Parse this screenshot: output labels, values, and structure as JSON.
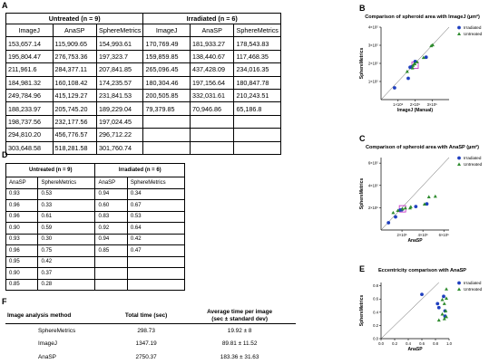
{
  "panels": {
    "A": "A",
    "B": "B",
    "C": "C",
    "D": "D",
    "E": "E",
    "F": "F"
  },
  "tableA": {
    "groups": [
      "Untreated (n = 9)",
      "Irradiated (n = 6)"
    ],
    "headers": [
      "ImageJ",
      "AnaSP",
      "SphereMetrics",
      "ImageJ",
      "AnaSP",
      "SphereMetrics"
    ],
    "rows": [
      [
        "153,657.14",
        "115,909.65",
        "154,993.61",
        "170,769.49",
        "181,933.27",
        "178,543.83"
      ],
      [
        "195,804.47",
        "276,753.36",
        "197,323.7",
        "159,859.85",
        "138,440.67",
        "117,468.35"
      ],
      [
        "211,961.6",
        "284,377.11",
        "207,841.85",
        "265,096.45",
        "437,428.09",
        "234,016.35"
      ],
      [
        "184,981.32",
        "160,108.42",
        "174,235.57",
        "180,304.46",
        "197,156.64",
        "180,847.78"
      ],
      [
        "249,784.96",
        "415,129.27",
        "231,841.53",
        "200,505.85",
        "332,031.61",
        "210,243.51"
      ],
      [
        "188,233.97",
        "205,745.20",
        "189,229.04",
        "79,379.85",
        "70,946.86",
        "65,186.8"
      ],
      [
        "198,737.56",
        "232,177.56",
        "197,024.45",
        "",
        "",
        ""
      ],
      [
        "294,810.20",
        "456,776.57",
        "296,712.22",
        "",
        "",
        ""
      ],
      [
        "303,648.58",
        "518,281.58",
        "301,760.74",
        "",
        "",
        ""
      ]
    ]
  },
  "tableD": {
    "groups": [
      "Untreated (n = 9)",
      "Irradiated (n = 6)"
    ],
    "headers": [
      "AnaSP",
      "SphereMetrics",
      "AnaSP",
      "SphereMetrics"
    ],
    "rows": [
      [
        "0.93",
        "0.53",
        "0.94",
        "0.34"
      ],
      [
        "0.96",
        "0.33",
        "0.60",
        "0.67"
      ],
      [
        "0.96",
        "0.61",
        "0.83",
        "0.53"
      ],
      [
        "0.90",
        "0.59",
        "0.92",
        "0.64"
      ],
      [
        "0.93",
        "0.30",
        "0.94",
        "0.42"
      ],
      [
        "0.96",
        "0.75",
        "0.85",
        "0.47"
      ],
      [
        "0.95",
        "0.42",
        "",
        ""
      ],
      [
        "0.90",
        "0.37",
        "",
        ""
      ],
      [
        "0.85",
        "0.28",
        "",
        ""
      ]
    ]
  },
  "tableF": {
    "headers": [
      "Image analysis method",
      "Total time (sec)",
      "Average time per image",
      "(sec ± standard dev)"
    ],
    "rows": [
      [
        "SphereMetrics",
        "298.73",
        "19.92 ± 8"
      ],
      [
        "ImageJ",
        "1347.19",
        "89.81 ± 11.52"
      ],
      [
        "AnaSP",
        "2750.37",
        "183.36 ± 31.63"
      ]
    ]
  },
  "chart_data": [
    {
      "type": "scatter",
      "title": "Comparison of spheroid area with ImageJ (µm²)",
      "xlabel": "ImageJ (Manual)",
      "ylabel": "SphereMetrics",
      "xticks": [
        "1×10⁵",
        "2×10⁵",
        "3×10⁵"
      ],
      "yticks": [
        "1×10⁵",
        "2×10⁵",
        "3×10⁵",
        "4×10⁵"
      ],
      "xlim": [
        0,
        400000
      ],
      "ylim": [
        0,
        400000
      ],
      "legend": "top-right",
      "series": [
        {
          "name": "Irradiated",
          "color": "#1f3fbf",
          "marker": "circle",
          "points": [
            [
              170769.49,
              178543.83
            ],
            [
              159859.85,
              117468.35
            ],
            [
              265096.45,
              234016.35
            ],
            [
              180304.46,
              180847.78
            ],
            [
              200505.85,
              210243.51
            ],
            [
              79379.85,
              65186.8
            ]
          ]
        },
        {
          "name": "Untreated",
          "color": "#2e8b2e",
          "marker": "triangle",
          "points": [
            [
              153657.14,
              154993.61
            ],
            [
              195804.47,
              197323.7
            ],
            [
              211961.6,
              207841.85
            ],
            [
              184981.32,
              174235.57
            ],
            [
              249784.96,
              231841.53
            ],
            [
              188233.97,
              189229.04
            ],
            [
              198737.56,
              197024.45
            ],
            [
              294810.2,
              296712.22
            ],
            [
              303648.58,
              301760.74
            ]
          ]
        }
      ],
      "reference_line": "identity",
      "highlight": [
        200000,
        190000
      ]
    },
    {
      "type": "scatter",
      "title": "Comparison of spheroid area with AnaSP (µm²)",
      "xlabel": "AnaSP",
      "ylabel": "SphereMetrics",
      "xticks": [
        "2×10⁵",
        "4×10⁵",
        "6×10⁵"
      ],
      "yticks": [
        "2×10⁵",
        "4×10⁵",
        "6×10⁵"
      ],
      "xlim": [
        0,
        650000
      ],
      "ylim": [
        0,
        650000
      ],
      "legend": "top-right",
      "series": [
        {
          "name": "Irradiated",
          "color": "#1f3fbf",
          "marker": "circle",
          "points": [
            [
              181933.27,
              178543.83
            ],
            [
              138440.67,
              117468.35
            ],
            [
              437428.09,
              234016.35
            ],
            [
              197156.64,
              180847.78
            ],
            [
              332031.61,
              210243.51
            ],
            [
              70946.86,
              65186.8
            ]
          ]
        },
        {
          "name": "Untreated",
          "color": "#2e8b2e",
          "marker": "triangle",
          "points": [
            [
              115909.65,
              154993.61
            ],
            [
              276753.36,
              197323.7
            ],
            [
              284377.11,
              207841.85
            ],
            [
              160108.42,
              174235.57
            ],
            [
              415129.27,
              231841.53
            ],
            [
              205745.2,
              189229.04
            ],
            [
              232177.56,
              197024.45
            ],
            [
              456776.57,
              296712.22
            ],
            [
              518281.58,
              301760.74
            ]
          ]
        }
      ],
      "reference_line": "identity",
      "highlight": [
        205000,
        190000
      ]
    },
    {
      "type": "scatter",
      "title": "Eccentricity comparison with AnaSP",
      "xlabel": "AnaSP",
      "ylabel": "SphereMetrics",
      "xticks": [
        "0.0",
        "0.2",
        "0.4",
        "0.6",
        "0.8",
        "1.0"
      ],
      "yticks": [
        "0.0",
        "0.2",
        "0.4",
        "0.6",
        "0.8"
      ],
      "xlim": [
        0,
        1.0
      ],
      "ylim": [
        0,
        0.85
      ],
      "legend": "top-right",
      "series": [
        {
          "name": "Irradiated",
          "color": "#1f3fbf",
          "marker": "circle",
          "points": [
            [
              0.94,
              0.34
            ],
            [
              0.6,
              0.67
            ],
            [
              0.83,
              0.53
            ],
            [
              0.92,
              0.64
            ],
            [
              0.94,
              0.42
            ],
            [
              0.85,
              0.47
            ]
          ]
        },
        {
          "name": "Untreated",
          "color": "#2e8b2e",
          "marker": "triangle",
          "points": [
            [
              0.93,
              0.53
            ],
            [
              0.96,
              0.33
            ],
            [
              0.96,
              0.61
            ],
            [
              0.9,
              0.59
            ],
            [
              0.93,
              0.3
            ],
            [
              0.96,
              0.75
            ],
            [
              0.95,
              0.42
            ],
            [
              0.9,
              0.37
            ],
            [
              0.85,
              0.28
            ]
          ]
        }
      ],
      "reference_line": "identity"
    }
  ]
}
